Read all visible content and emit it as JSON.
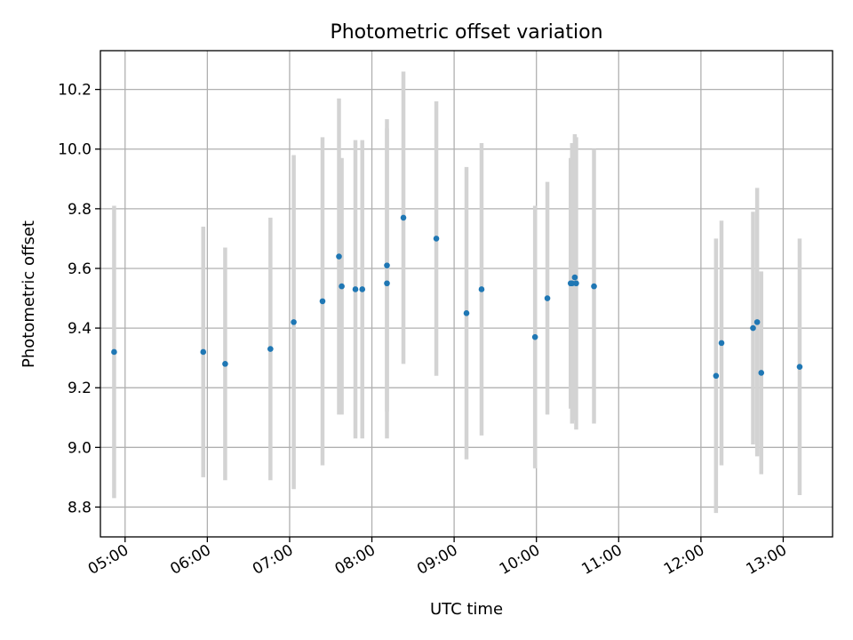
{
  "chart_data": {
    "type": "scatter",
    "title": "Photometric offset variation",
    "xlabel": "UTC time",
    "ylabel": "Photometric offset",
    "xlim": [
      "04:42",
      "13:36"
    ],
    "ylim": [
      8.7,
      10.33
    ],
    "xticks": [
      "05:00",
      "06:00",
      "07:00",
      "08:00",
      "09:00",
      "10:00",
      "11:00",
      "12:00",
      "13:00"
    ],
    "yticks": [
      "8.8",
      "9.0",
      "9.2",
      "9.4",
      "9.6",
      "9.8",
      "10.0",
      "10.2"
    ],
    "grid": true,
    "colors": {
      "point": "#1f77b4",
      "errorbar": "#d3d3d3"
    },
    "points": [
      {
        "x": "04:52",
        "y": 9.32,
        "err": 0.49
      },
      {
        "x": "05:57",
        "y": 9.32,
        "err": 0.42
      },
      {
        "x": "06:13",
        "y": 9.28,
        "err": 0.39
      },
      {
        "x": "06:46",
        "y": 9.33,
        "err": 0.44
      },
      {
        "x": "07:03",
        "y": 9.42,
        "err": 0.56
      },
      {
        "x": "07:24",
        "y": 9.49,
        "err": 0.55
      },
      {
        "x": "07:36",
        "y": 9.64,
        "err": 0.53
      },
      {
        "x": "07:38",
        "y": 9.54,
        "err": 0.43
      },
      {
        "x": "07:48",
        "y": 9.53,
        "err": 0.5
      },
      {
        "x": "07:53",
        "y": 9.53,
        "err": 0.5
      },
      {
        "x": "08:11",
        "y": 9.61,
        "err": 0.49
      },
      {
        "x": "08:11",
        "y": 9.55,
        "err": 0.52
      },
      {
        "x": "08:23",
        "y": 9.77,
        "err": 0.49
      },
      {
        "x": "08:47",
        "y": 9.7,
        "err": 0.46
      },
      {
        "x": "09:09",
        "y": 9.45,
        "err": 0.49
      },
      {
        "x": "09:20",
        "y": 9.53,
        "err": 0.49
      },
      {
        "x": "09:59",
        "y": 9.37,
        "err": 0.44
      },
      {
        "x": "10:08",
        "y": 9.5,
        "err": 0.39
      },
      {
        "x": "10:25",
        "y": 9.55,
        "err": 0.42
      },
      {
        "x": "10:26",
        "y": 9.55,
        "err": 0.47
      },
      {
        "x": "10:28",
        "y": 9.57,
        "err": 0.48
      },
      {
        "x": "10:29",
        "y": 9.55,
        "err": 0.49
      },
      {
        "x": "10:42",
        "y": 9.54,
        "err": 0.46
      },
      {
        "x": "12:11",
        "y": 9.24,
        "err": 0.46
      },
      {
        "x": "12:15",
        "y": 9.35,
        "err": 0.41
      },
      {
        "x": "12:38",
        "y": 9.4,
        "err": 0.39
      },
      {
        "x": "12:41",
        "y": 9.42,
        "err": 0.45
      },
      {
        "x": "12:44",
        "y": 9.25,
        "err": 0.34
      },
      {
        "x": "13:12",
        "y": 9.27,
        "err": 0.43
      }
    ]
  }
}
